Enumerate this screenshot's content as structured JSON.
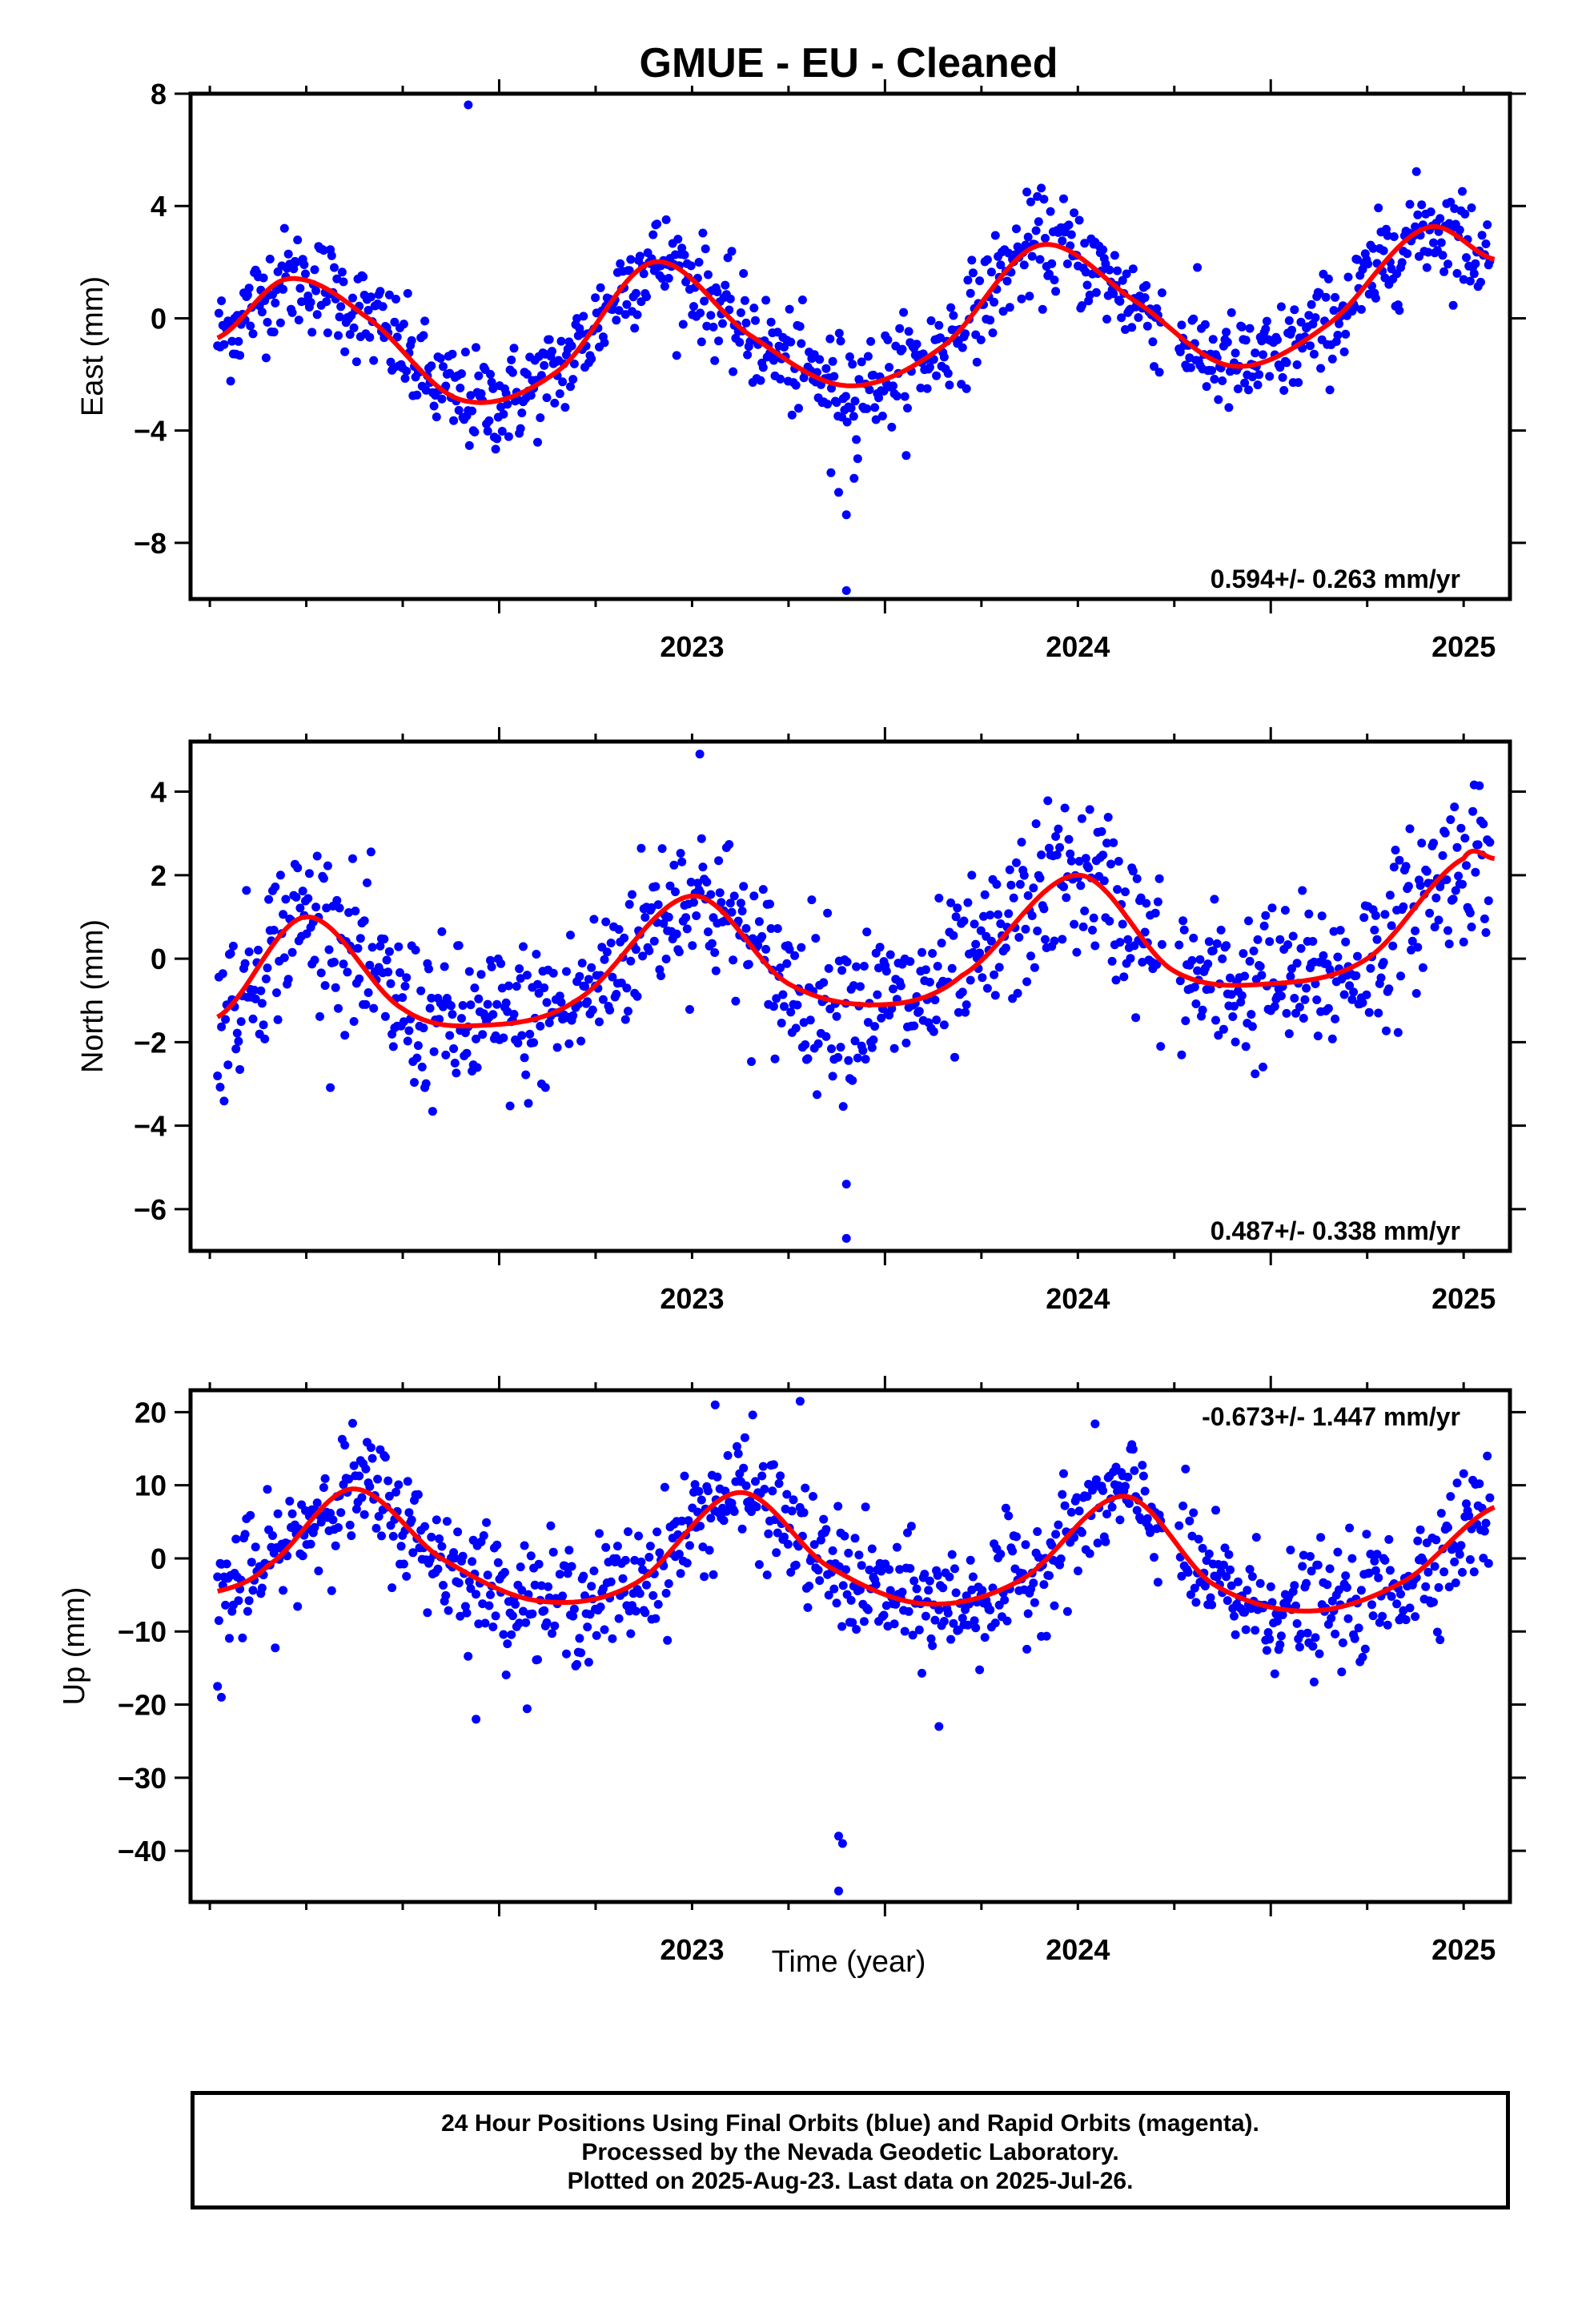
{
  "chart_data": {
    "title": "GMUE  - EU - Cleaned",
    "xlabel": "Time (year)",
    "x_tick_labels": [
      "2023",
      "2024",
      "2025"
    ],
    "xlim": [
      2022.2,
      2025.62
    ],
    "colors": {
      "points": "#0000ff",
      "fit": "#ff0000",
      "axes": "#000000"
    },
    "panels": [
      {
        "type": "scatter",
        "ylabel": "East (mm)",
        "ylim": [
          -10,
          8
        ],
        "yticks": [
          8,
          4,
          0,
          -4,
          -8
        ],
        "y_tick_labels": [
          "8",
          "4",
          "0",
          "−4",
          "−8"
        ],
        "rate_label": "0.594+/- 0.263 mm/yr",
        "rate_position": "bottom-right",
        "outliers": [
          {
            "x": 2022.92,
            "y": 7.6
          },
          {
            "x": 2023.88,
            "y": -6.2
          },
          {
            "x": 2023.9,
            "y": -7.0
          },
          {
            "x": 2023.9,
            "y": -9.7
          },
          {
            "x": 2023.92,
            "y": -5.7
          },
          {
            "x": 2023.86,
            "y": -5.5
          }
        ],
        "fit": {
          "x": [
            2022.27,
            2022.45,
            2022.65,
            2022.9,
            2023.15,
            2023.4,
            2023.65,
            2023.9,
            2024.15,
            2024.4,
            2024.65,
            2024.9,
            2025.15,
            2025.4,
            2025.58
          ],
          "y": [
            -0.7,
            1.4,
            0.1,
            -2.9,
            -1.9,
            2.0,
            -0.6,
            -2.4,
            -1.0,
            2.6,
            0.6,
            -1.7,
            -0.2,
            3.2,
            2.1
          ]
        },
        "scatter": {
          "amplitude": 2.6,
          "trend": 0.594,
          "offset": -0.6,
          "noise": 0.9,
          "phase": 0.72
        }
      },
      {
        "type": "scatter",
        "ylabel": "North (mm)",
        "ylim": [
          -7,
          5.2
        ],
        "yticks": [
          4,
          2,
          0,
          -2,
          -4,
          -6
        ],
        "y_tick_labels": [
          "4",
          "2",
          "0",
          "−2",
          "−4",
          "−6"
        ],
        "rate_label": "0.487+/- 0.338 mm/yr",
        "rate_position": "bottom-right",
        "outliers": [
          {
            "x": 2023.9,
            "y": -5.4
          },
          {
            "x": 2023.9,
            "y": -6.7
          },
          {
            "x": 2023.52,
            "y": 4.9
          }
        ],
        "fit": {
          "x": [
            2022.27,
            2022.5,
            2022.75,
            2022.95,
            2023.2,
            2023.5,
            2023.75,
            2024.0,
            2024.2,
            2024.5,
            2024.75,
            2025.0,
            2025.25,
            2025.5,
            2025.58
          ],
          "y": [
            -1.4,
            1.0,
            -1.2,
            -1.6,
            -1.0,
            1.5,
            -0.6,
            -1.1,
            -0.4,
            2.0,
            -0.3,
            -0.6,
            0.0,
            2.4,
            2.4
          ]
        },
        "scatter": {
          "amplitude": 1.6,
          "trend": 0.487,
          "offset": -0.3,
          "noise": 0.95,
          "phase": 0.55
        }
      },
      {
        "type": "scatter",
        "ylabel": "Up (mm)",
        "ylim": [
          -47,
          23
        ],
        "yticks": [
          20,
          10,
          0,
          -10,
          -20,
          -30,
          -40
        ],
        "y_tick_labels": [
          "20",
          "10",
          "0",
          "−10",
          "−20",
          "−30",
          "−40"
        ],
        "rate_label": "-0.673+/- 1.447 mm/yr",
        "rate_position": "top-right",
        "outliers": [
          {
            "x": 2022.28,
            "y": -19.0
          },
          {
            "x": 2022.27,
            "y": -17.5
          },
          {
            "x": 2023.88,
            "y": -38.0
          },
          {
            "x": 2023.89,
            "y": -39.0
          },
          {
            "x": 2023.88,
            "y": -45.5
          },
          {
            "x": 2022.94,
            "y": -22.0
          },
          {
            "x": 2024.14,
            "y": -23.0
          },
          {
            "x": 2023.78,
            "y": 21.5
          },
          {
            "x": 2023.56,
            "y": 21.0
          }
        ],
        "fit": {
          "x": [
            2022.27,
            2022.4,
            2022.62,
            2022.85,
            2023.1,
            2023.35,
            2023.62,
            2023.85,
            2024.1,
            2024.35,
            2024.62,
            2024.85,
            2025.1,
            2025.35,
            2025.58
          ],
          "y": [
            -4.5,
            -1.0,
            9.5,
            0.0,
            -5.8,
            -3.5,
            9.0,
            -1.0,
            -6.2,
            -3.0,
            8.5,
            -3.5,
            -7.2,
            -3.0,
            7.0
          ]
        },
        "scatter": {
          "amplitude": 7.5,
          "trend": -0.673,
          "offset": 0.5,
          "noise": 4.0,
          "phase": 0.62
        }
      }
    ]
  },
  "footer": {
    "line1": "24 Hour Positions Using Final Orbits (blue) and Rapid Orbits (magenta).",
    "line2": "Processed by the Nevada Geodetic Laboratory.",
    "line3": "Plotted on 2025-Aug-23. Last data on 2025-Jul-26."
  }
}
